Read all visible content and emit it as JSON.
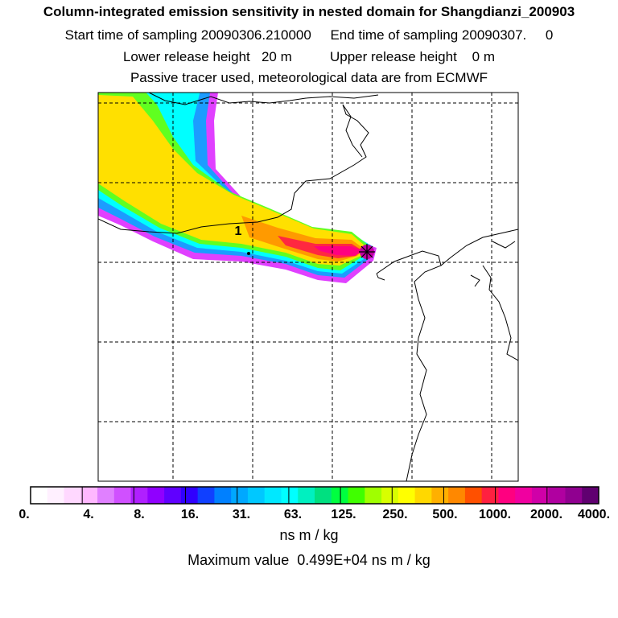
{
  "header": {
    "title": "Column-integrated emission sensitivity in nested domain for Shangdianzi_200903",
    "line2": "Start time of sampling 20090306.210000     End time of sampling 20090307.     0",
    "line3": "Lower release height   20 m          Upper release height    0 m",
    "line4": "Passive tracer used, meteorological data are from ECMWF"
  },
  "map": {
    "release_label": "1",
    "release_marker": "star-cross-icon"
  },
  "colorbar": {
    "colors": [
      "#ffffff",
      "#fff0ff",
      "#ffd8ff",
      "#ffb8ff",
      "#e080ff",
      "#d050ff",
      "#b020ff",
      "#9000ff",
      "#6000ff",
      "#3000ff",
      "#1040ff",
      "#0080ff",
      "#00a8ff",
      "#00c8ff",
      "#00e8ff",
      "#00ffff",
      "#00f0c0",
      "#00e080",
      "#00ff40",
      "#40ff00",
      "#a0ff00",
      "#d8ff00",
      "#ffff00",
      "#ffd800",
      "#ffb000",
      "#ff8800",
      "#ff5000",
      "#ff2040",
      "#ff0080",
      "#f000a0",
      "#d000a8",
      "#b000a0",
      "#900090",
      "#600070"
    ],
    "tick_labels": [
      "0.",
      "4.",
      "8.",
      "16.",
      "31.",
      "63.",
      "125.",
      "250.",
      "500.",
      "1000.",
      "2000.",
      "4000."
    ],
    "units": "ns m / kg"
  },
  "footer": {
    "max_value": "Maximum value  0.499E+04 ns m / kg"
  }
}
